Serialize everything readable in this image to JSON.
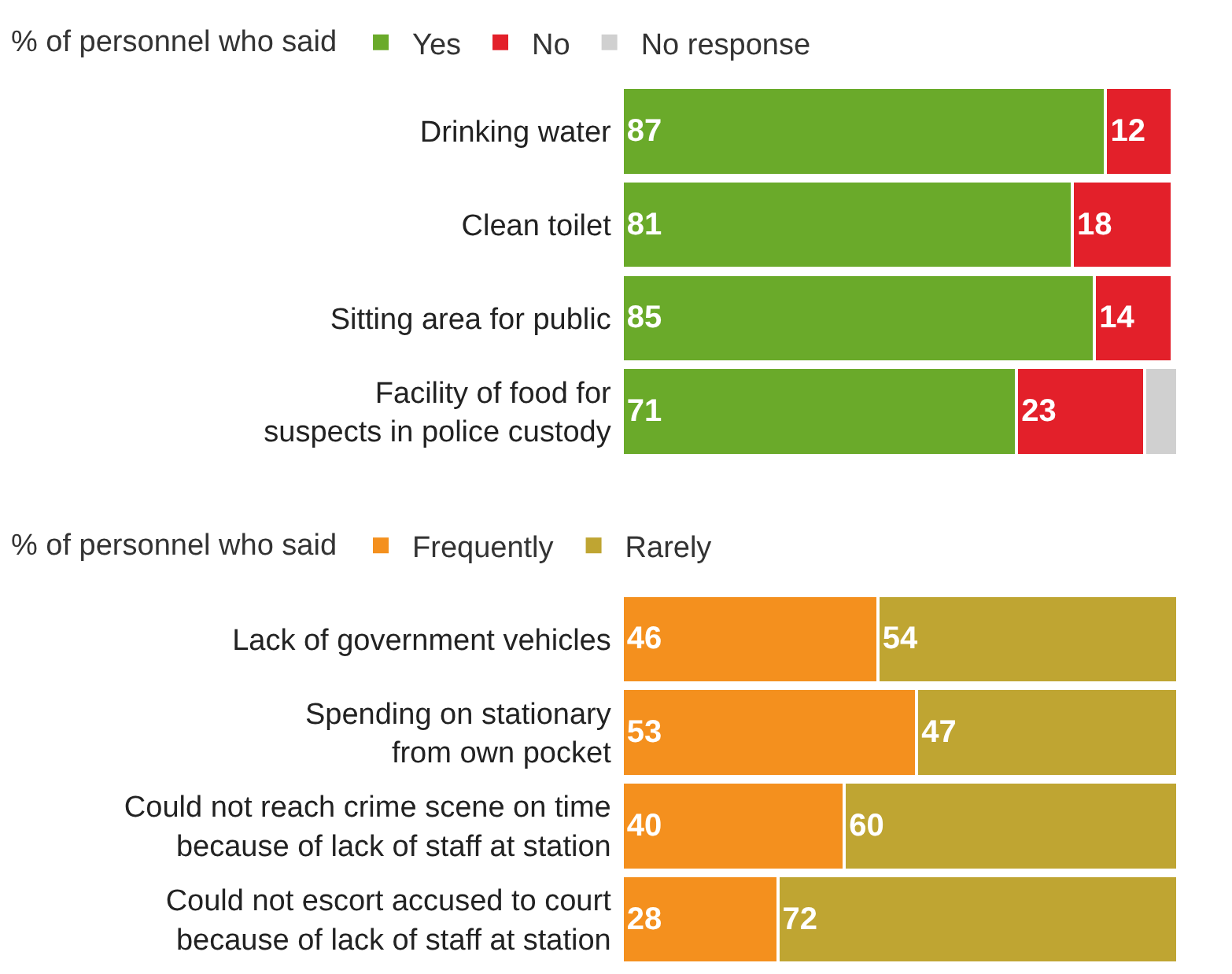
{
  "chart_data": [
    {
      "type": "bar",
      "orientation": "horizontal",
      "stacked": true,
      "legend_title": "% of personnel who said",
      "legend": "top left",
      "tick_labels": "y",
      "xlim": [
        0,
        100
      ],
      "categories": [
        "Drinking water",
        "Clean toilet",
        "Sitting area for public",
        "Facility of food for\nsuspects in police custody"
      ],
      "series": [
        {
          "name": "Yes",
          "color": "#6aaa2a",
          "values": [
            87,
            81,
            85,
            71
          ],
          "value_labels": [
            "87",
            "81",
            "85",
            "71"
          ]
        },
        {
          "name": "No",
          "color": "#e3202a",
          "values": [
            12,
            18,
            14,
            23
          ],
          "value_labels": [
            "12",
            "18",
            "14",
            "23"
          ]
        },
        {
          "name": "No response",
          "color": "#d0d0d0",
          "values": [
            null,
            null,
            null,
            6
          ],
          "value_labels": [
            null,
            null,
            null,
            null
          ]
        }
      ]
    },
    {
      "type": "bar",
      "orientation": "horizontal",
      "stacked": true,
      "legend_title": "% of personnel who said",
      "legend": "top left",
      "tick_labels": "y",
      "xlim": [
        0,
        100
      ],
      "categories": [
        "Lack of government vehicles",
        "Spending on stationary\nfrom own pocket",
        "Could not reach crime scene on time\nbecause of lack of staff at station",
        "Could not escort accused to court\nbecause of lack of staff at station"
      ],
      "series": [
        {
          "name": "Frequently",
          "color": "#f4901e",
          "values": [
            46,
            53,
            40,
            28
          ],
          "value_labels": [
            "46",
            "53",
            "40",
            "28"
          ]
        },
        {
          "name": "Rarely",
          "color": "#bfa532",
          "values": [
            54,
            47,
            60,
            72
          ],
          "value_labels": [
            "54",
            "47",
            "60",
            "72"
          ]
        }
      ]
    }
  ]
}
